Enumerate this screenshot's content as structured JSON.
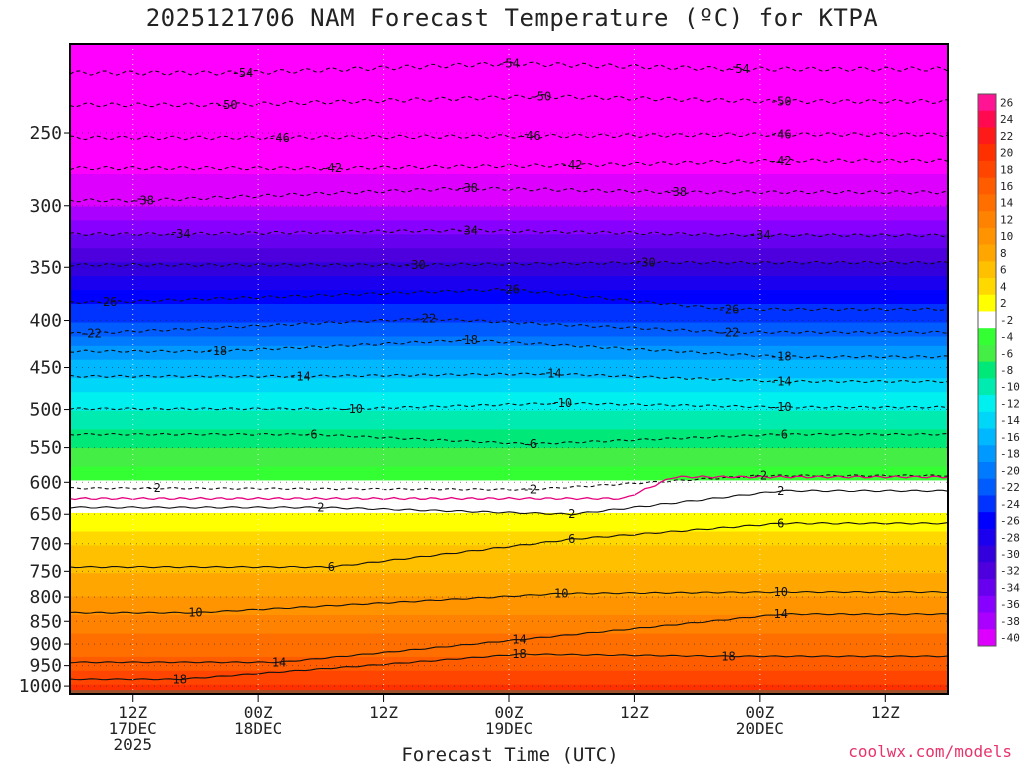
{
  "title": "2025121706 NAM Forecast Temperature (ºC) for KTPA",
  "xlabel": "Forecast Time (UTC)",
  "credit": "coolwx.com/models",
  "chart_data": {
    "type": "heatmap",
    "x_ticks": [
      {
        "t": 6,
        "lines": [
          "12Z",
          "17DEC",
          "2025"
        ]
      },
      {
        "t": 18,
        "lines": [
          "00Z",
          "18DEC"
        ]
      },
      {
        "t": 30,
        "lines": [
          "12Z"
        ]
      },
      {
        "t": 42,
        "lines": [
          "00Z",
          "19DEC"
        ]
      },
      {
        "t": 54,
        "lines": [
          "12Z"
        ]
      },
      {
        "t": 66,
        "lines": [
          "00Z",
          "20DEC"
        ]
      },
      {
        "t": 78,
        "lines": [
          "12Z"
        ]
      }
    ],
    "xlim": [
      0,
      84
    ],
    "y_ticks": [
      250,
      300,
      350,
      400,
      450,
      500,
      550,
      600,
      650,
      700,
      750,
      800,
      850,
      900,
      950,
      1000
    ],
    "ylim": [
      200,
      1020
    ],
    "colorbar_levels": [
      26,
      24,
      22,
      20,
      18,
      16,
      14,
      12,
      10,
      8,
      6,
      4,
      2,
      -2,
      -4,
      -6,
      -8,
      -10,
      -12,
      -14,
      -16,
      -18,
      -20,
      -22,
      -24,
      -26,
      -28,
      -30,
      -32,
      -34,
      -36,
      -38,
      -40
    ],
    "colorbar_colors": [
      "#ff1493",
      "#ff0a50",
      "#ff1a1a",
      "#ff3000",
      "#ff4500",
      "#ff5c00",
      "#ff6f00",
      "#ff8200",
      "#ff9400",
      "#ffa600",
      "#ffc000",
      "#ffd800",
      "#ffff00",
      "#ffffff",
      "#33ff33",
      "#44ee44",
      "#00e878",
      "#00ebb0",
      "#00f0f0",
      "#00d6f8",
      "#00b8ff",
      "#0099ff",
      "#007aff",
      "#005cff",
      "#0033ff",
      "#0000ff",
      "#1a00ee",
      "#3300dd",
      "#4d00dd",
      "#6600ee",
      "#8800ff",
      "#aa00ff",
      "#dd00ff"
    ],
    "temperature_profile": [
      {
        "p": 200,
        "t": -57
      },
      {
        "p": 250,
        "t": -47
      },
      {
        "p": 300,
        "t": -38
      },
      {
        "p": 350,
        "t": -29
      },
      {
        "p": 400,
        "t": -22
      },
      {
        "p": 450,
        "t": -15
      },
      {
        "p": 500,
        "t": -10
      },
      {
        "p": 550,
        "t": -6
      },
      {
        "p": 600,
        "t": -2
      },
      {
        "p": 620,
        "t": 0
      },
      {
        "p": 650,
        "t": 2
      },
      {
        "p": 700,
        "t": 6
      },
      {
        "p": 750,
        "t": 8
      },
      {
        "p": 800,
        "t": 10
      },
      {
        "p": 850,
        "t": 13
      },
      {
        "p": 900,
        "t": 15
      },
      {
        "p": 950,
        "t": 17
      },
      {
        "p": 1000,
        "t": 20
      },
      {
        "p": 1020,
        "t": 21
      }
    ],
    "contour_labels": [
      {
        "v": "-54",
        "t": 16.5,
        "p": 215
      },
      {
        "v": "-54",
        "t": 42,
        "p": 210
      },
      {
        "v": "-54",
        "t": 64,
        "p": 213
      },
      {
        "v": "-50",
        "t": 15,
        "p": 233
      },
      {
        "v": "-50",
        "t": 45,
        "p": 228
      },
      {
        "v": "-50",
        "t": 68,
        "p": 231
      },
      {
        "v": "-46",
        "t": 20,
        "p": 253
      },
      {
        "v": "-46",
        "t": 44,
        "p": 252
      },
      {
        "v": "-46",
        "t": 68,
        "p": 251
      },
      {
        "v": "-42",
        "t": 25,
        "p": 273
      },
      {
        "v": "-42",
        "t": 48,
        "p": 271
      },
      {
        "v": "-42",
        "t": 68,
        "p": 268
      },
      {
        "v": "-38",
        "t": 7,
        "p": 296
      },
      {
        "v": "-38",
        "t": 38,
        "p": 287
      },
      {
        "v": "-38",
        "t": 58,
        "p": 290
      },
      {
        "v": "-34",
        "t": 10.5,
        "p": 322
      },
      {
        "v": "-34",
        "t": 38,
        "p": 319
      },
      {
        "v": "-34",
        "t": 66,
        "p": 323
      },
      {
        "v": "-30",
        "t": 33,
        "p": 348
      },
      {
        "v": "-30",
        "t": 55,
        "p": 346
      },
      {
        "v": "-26",
        "t": 3.5,
        "p": 382
      },
      {
        "v": "-26",
        "t": 42,
        "p": 370
      },
      {
        "v": "-26",
        "t": 63,
        "p": 389
      },
      {
        "v": "-22",
        "t": 2,
        "p": 413
      },
      {
        "v": "-22",
        "t": 34,
        "p": 398
      },
      {
        "v": "-22",
        "t": 63,
        "p": 412
      },
      {
        "v": "-18",
        "t": 14,
        "p": 432
      },
      {
        "v": "-18",
        "t": 38,
        "p": 420
      },
      {
        "v": "-18",
        "t": 68,
        "p": 438
      },
      {
        "v": "-14",
        "t": 22,
        "p": 460
      },
      {
        "v": "-14",
        "t": 46,
        "p": 457
      },
      {
        "v": "-14",
        "t": 68,
        "p": 466
      },
      {
        "v": "-10",
        "t": 27,
        "p": 499
      },
      {
        "v": "-10",
        "t": 47,
        "p": 492
      },
      {
        "v": "-10",
        "t": 68,
        "p": 497
      },
      {
        "v": "-6",
        "t": 23,
        "p": 532
      },
      {
        "v": "-6",
        "t": 44,
        "p": 545
      },
      {
        "v": "-6",
        "t": 68,
        "p": 532
      },
      {
        "v": "-2",
        "t": 8,
        "p": 609
      },
      {
        "v": "-2",
        "t": 44,
        "p": 611
      },
      {
        "v": "-2",
        "t": 66,
        "p": 590
      },
      {
        "v": "2",
        "t": 24,
        "p": 639
      },
      {
        "v": "2",
        "t": 48,
        "p": 650
      },
      {
        "v": "2",
        "t": 68,
        "p": 613
      },
      {
        "v": "6",
        "t": 25,
        "p": 742
      },
      {
        "v": "6",
        "t": 48,
        "p": 692
      },
      {
        "v": "6",
        "t": 68,
        "p": 665
      },
      {
        "v": "10",
        "t": 12,
        "p": 832
      },
      {
        "v": "10",
        "t": 47,
        "p": 793
      },
      {
        "v": "10",
        "t": 68,
        "p": 790
      },
      {
        "v": "14",
        "t": 20,
        "p": 942
      },
      {
        "v": "14",
        "t": 43,
        "p": 890
      },
      {
        "v": "14",
        "t": 68,
        "p": 835
      },
      {
        "v": "18",
        "t": 10.5,
        "p": 983
      },
      {
        "v": "18",
        "t": 43,
        "p": 923
      },
      {
        "v": "18",
        "t": 63,
        "p": 928
      }
    ]
  }
}
